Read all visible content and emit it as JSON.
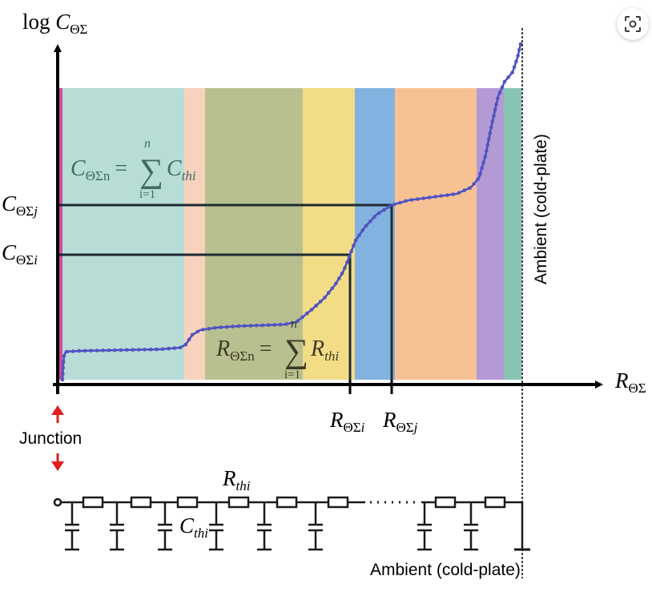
{
  "diagram": {
    "y_axis_label": {
      "base": "log ",
      "var": "C",
      "sub": "ΘΣ"
    },
    "x_axis_label": {
      "var": "R",
      "sub": "ΘΣ"
    },
    "c_level_j": {
      "var": "C",
      "sub": "ΘΣ",
      "idx": "j"
    },
    "c_level_i": {
      "var": "C",
      "sub": "ΘΣ",
      "idx": "i"
    },
    "r_mark_i": {
      "var": "R",
      "sub": "ΘΣ",
      "idx": "i"
    },
    "r_mark_j": {
      "var": "R",
      "sub": "ΘΣ",
      "idx": "j"
    },
    "c_formula": {
      "lhs_var": "C",
      "lhs_sub": "ΘΣn",
      "eq": "=",
      "sum": "∑",
      "upper": "n",
      "lower": "i=1",
      "term_var": "C",
      "term_sub": "thi"
    },
    "r_formula": {
      "lhs_var": "R",
      "lhs_sub": "ΘΣn",
      "eq": "=",
      "sum": "∑",
      "upper": "n",
      "lower": "i=1",
      "term_var": "R",
      "term_sub": "thi"
    },
    "ambient_vertical": "Ambient (cold-plate)",
    "junction": "Junction",
    "resistor_label": {
      "var": "R",
      "sub": "thi"
    },
    "capacitor_label": {
      "var": "C",
      "sub": "thi"
    },
    "ambient_bottom": "Ambient (cold-plate)",
    "band_colors": [
      "#b8dcd6",
      "#f7d2bd",
      "#b9c090",
      "#f2dc86",
      "#82b2df",
      "#f7c293",
      "#b39ad4",
      "#87c4b4"
    ],
    "curve_color": "#3a4fd6",
    "arrow_color": "#e0201e"
  }
}
